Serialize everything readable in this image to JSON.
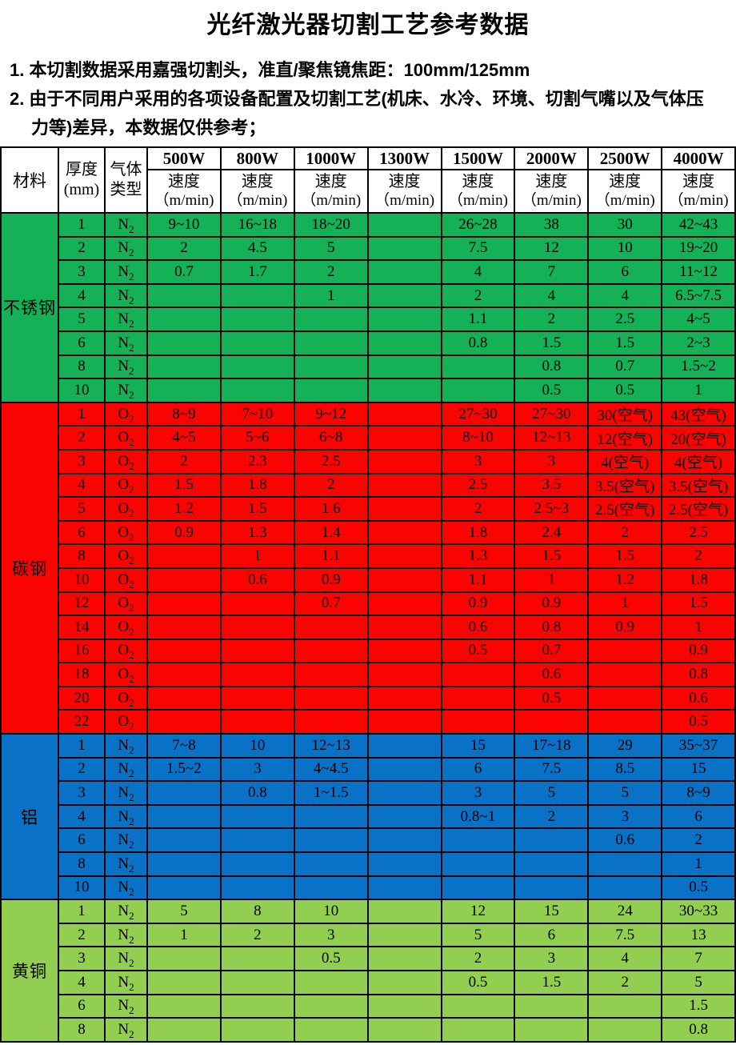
{
  "title": "光纤激光器切割工艺参考数据",
  "notes": [
    "1. 本切割数据采用嘉强切割头，准直/聚焦镜焦距：100mm/125mm",
    "2. 由于不同用户采用的各项设备配置及切割工艺(机床、水冷、环境、切割气嘴以及气体压",
    "力等)差异，本数据仅供参考；"
  ],
  "table": {
    "header": {
      "material": "材料",
      "thickness_line1": "厚度",
      "thickness_line2": "(mm)",
      "gas_line1": "气体",
      "gas_line2": "类型",
      "powers": [
        "500W",
        "800W",
        "1000W",
        "1300W",
        "1500W",
        "2000W",
        "2500W",
        "4000W"
      ],
      "speed_label": "速度",
      "speed_unit": "（m/min)"
    },
    "sections": [
      {
        "material": "不锈钢",
        "color": "#14B156",
        "rows": [
          {
            "thickness": "1",
            "gas": "N2",
            "speeds": [
              "9~10",
              "16~18",
              "18~20",
              "",
              "26~28",
              "38",
              "30",
              "42~43"
            ]
          },
          {
            "thickness": "2",
            "gas": "N2",
            "speeds": [
              "2",
              "4.5",
              "5",
              "",
              "7.5",
              "12",
              "10",
              "19~20"
            ]
          },
          {
            "thickness": "3",
            "gas": "N2",
            "speeds": [
              "0.7",
              "1.7",
              "2",
              "",
              "4",
              "7",
              "6",
              "11~12"
            ]
          },
          {
            "thickness": "4",
            "gas": "N2",
            "speeds": [
              "",
              "",
              "1",
              "",
              "2",
              "4",
              "4",
              "6.5~7.5"
            ]
          },
          {
            "thickness": "5",
            "gas": "N2",
            "speeds": [
              "",
              "",
              "",
              "",
              "1.1",
              "2",
              "2.5",
              "4~5"
            ]
          },
          {
            "thickness": "6",
            "gas": "N2",
            "speeds": [
              "",
              "",
              "",
              "",
              "0.8",
              "1.5",
              "1.5",
              "2~3"
            ]
          },
          {
            "thickness": "8",
            "gas": "N2",
            "speeds": [
              "",
              "",
              "",
              "",
              "",
              "0.8",
              "0.7",
              "1.5~2"
            ]
          },
          {
            "thickness": "10",
            "gas": "N2",
            "speeds": [
              "",
              "",
              "",
              "",
              "",
              "0.5",
              "0.5",
              "1"
            ]
          }
        ]
      },
      {
        "material": "碳钢",
        "color": "#FB0301",
        "rows": [
          {
            "thickness": "1",
            "gas": "O2",
            "speeds": [
              "8~9",
              "7~10",
              "9~12",
              "",
              "27~30",
              "27~30",
              "30(空气)",
              "43(空气)"
            ]
          },
          {
            "thickness": "2",
            "gas": "O2",
            "speeds": [
              "4~5",
              "5~6",
              "6~8",
              "",
              "8~10",
              "12~13",
              "12(空气)",
              "20(空气)"
            ]
          },
          {
            "thickness": "3",
            "gas": "O2",
            "speeds": [
              "2",
              "2.3",
              "2.5",
              "",
              "3",
              "3",
              "4(空气)",
              "4(空气)"
            ]
          },
          {
            "thickness": "4",
            "gas": "O2",
            "speeds": [
              "1.5",
              "1.8",
              "2",
              "",
              "2.5",
              "3.5",
              "3.5(空气)",
              "3.5(空气)"
            ]
          },
          {
            "thickness": "5",
            "gas": "O2",
            "speeds": [
              "1.2",
              "1.5",
              "1.6",
              "",
              "2",
              "2.5~3",
              "2.5(空气)",
              "2.5(空气)"
            ]
          },
          {
            "thickness": "6",
            "gas": "O2",
            "speeds": [
              "0.9",
              "1.3",
              "1.4",
              "",
              "1.8",
              "2.4",
              "2",
              "2.5"
            ]
          },
          {
            "thickness": "8",
            "gas": "O2",
            "speeds": [
              "",
              "1",
              "1.1",
              "",
              "1.3",
              "1.5",
              "1.5",
              "2"
            ]
          },
          {
            "thickness": "10",
            "gas": "O2",
            "speeds": [
              "",
              "0.6",
              "0.9",
              "",
              "1.1",
              "1",
              "1.2",
              "1.8"
            ]
          },
          {
            "thickness": "12",
            "gas": "O2",
            "speeds": [
              "",
              "",
              "0.7",
              "",
              "0.9",
              "0.9",
              "1",
              "1.5"
            ]
          },
          {
            "thickness": "14",
            "gas": "O2",
            "speeds": [
              "",
              "",
              "",
              "",
              "0.6",
              "0.8",
              "0.9",
              "1"
            ]
          },
          {
            "thickness": "16",
            "gas": "O2",
            "speeds": [
              "",
              "",
              "",
              "",
              "0.5",
              "0.7",
              "",
              "0.9"
            ]
          },
          {
            "thickness": "18",
            "gas": "O2",
            "speeds": [
              "",
              "",
              "",
              "",
              "",
              "0.6",
              "",
              "0.8"
            ]
          },
          {
            "thickness": "20",
            "gas": "O2",
            "speeds": [
              "",
              "",
              "",
              "",
              "",
              "0.5",
              "",
              "0.6"
            ]
          },
          {
            "thickness": "22",
            "gas": "O2",
            "speeds": [
              "",
              "",
              "",
              "",
              "",
              "",
              "",
              "0.5"
            ]
          }
        ]
      },
      {
        "material": "铝",
        "color": "#0A72C6",
        "rows": [
          {
            "thickness": "1",
            "gas": "N2",
            "speeds": [
              "7~8",
              "10",
              "12~13",
              "",
              "15",
              "17~18",
              "29",
              "35~37"
            ]
          },
          {
            "thickness": "2",
            "gas": "N2",
            "speeds": [
              "1.5~2",
              "3",
              "4~4.5",
              "",
              "6",
              "7.5",
              "8.5",
              "15"
            ]
          },
          {
            "thickness": "3",
            "gas": "N2",
            "speeds": [
              "",
              "0.8",
              "1~1.5",
              "",
              "3",
              "5",
              "5",
              "8~9"
            ]
          },
          {
            "thickness": "4",
            "gas": "N2",
            "speeds": [
              "",
              "",
              "",
              "",
              "0.8~1",
              "2",
              "3",
              "6"
            ]
          },
          {
            "thickness": "6",
            "gas": "N2",
            "speeds": [
              "",
              "",
              "",
              "",
              "",
              "",
              "0.6",
              "2"
            ]
          },
          {
            "thickness": "8",
            "gas": "N2",
            "speeds": [
              "",
              "",
              "",
              "",
              "",
              "",
              "",
              "1"
            ]
          },
          {
            "thickness": "10",
            "gas": "N2",
            "speeds": [
              "",
              "",
              "",
              "",
              "",
              "",
              "",
              "0.5"
            ]
          }
        ]
      },
      {
        "material": "黄铜",
        "color": "#92CF50",
        "rows": [
          {
            "thickness": "1",
            "gas": "N2",
            "speeds": [
              "5",
              "8",
              "10",
              "",
              "12",
              "15",
              "24",
              "30~33"
            ]
          },
          {
            "thickness": "2",
            "gas": "N2",
            "speeds": [
              "1",
              "2",
              "3",
              "",
              "5",
              "6",
              "7.5",
              "13"
            ]
          },
          {
            "thickness": "3",
            "gas": "N2",
            "speeds": [
              "",
              "",
              "0.5",
              "",
              "2",
              "3",
              "4",
              "7"
            ]
          },
          {
            "thickness": "4",
            "gas": "N2",
            "speeds": [
              "",
              "",
              "",
              "",
              "0.5",
              "1.5",
              "2",
              "5"
            ]
          },
          {
            "thickness": "6",
            "gas": "N2",
            "speeds": [
              "",
              "",
              "",
              "",
              "",
              "",
              "",
              "1.5"
            ]
          },
          {
            "thickness": "8",
            "gas": "N2",
            "speeds": [
              "",
              "",
              "",
              "",
              "",
              "",
              "",
              "0.8"
            ]
          }
        ]
      }
    ]
  }
}
